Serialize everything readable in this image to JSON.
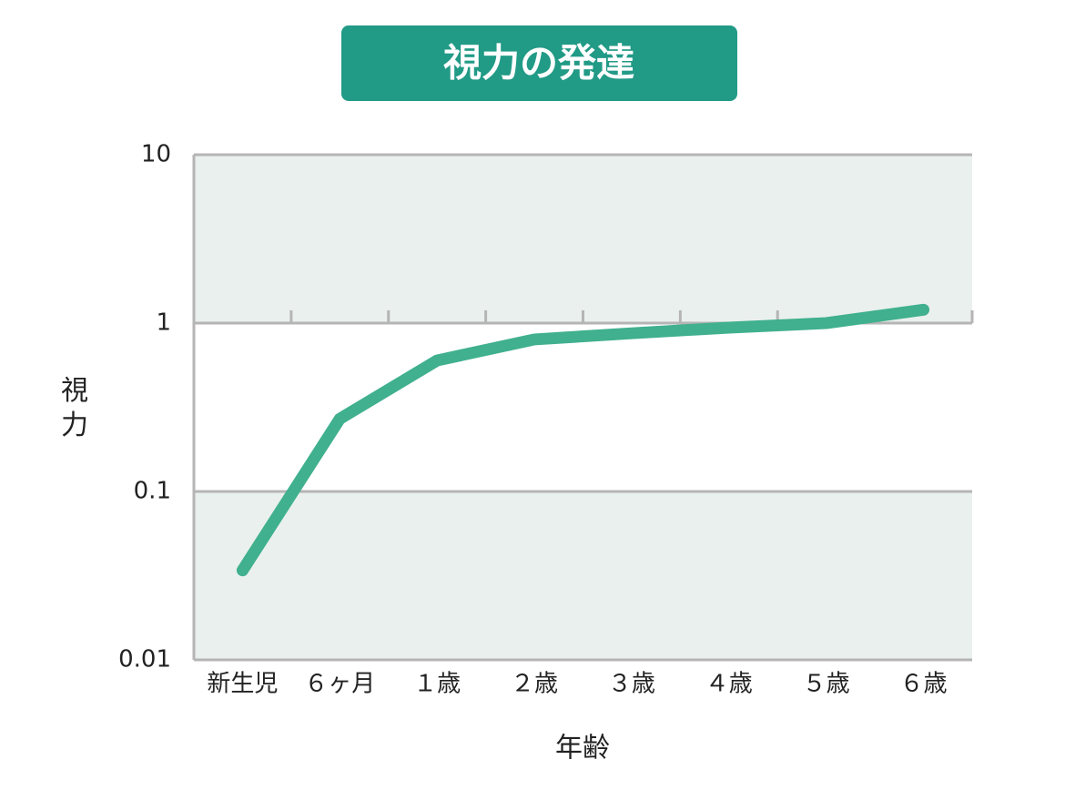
{
  "chart_data": {
    "type": "line",
    "title": "視力の発達",
    "categories": [
      "新生児",
      "６ヶ月",
      "１歳",
      "２歳",
      "３歳",
      "４歳",
      "５歳",
      "６歳"
    ],
    "series": [
      {
        "name": "視力",
        "color": "#40b08e",
        "values": [
          0.034,
          0.27,
          0.6,
          0.8,
          0.87,
          0.94,
          1.0,
          1.2
        ]
      }
    ],
    "y_label": "視力",
    "x_label": "年齢",
    "log_y": true,
    "ylim": [
      0.01,
      10
    ],
    "yticks": [
      0.01,
      0.1,
      1,
      10
    ],
    "grid": true
  }
}
